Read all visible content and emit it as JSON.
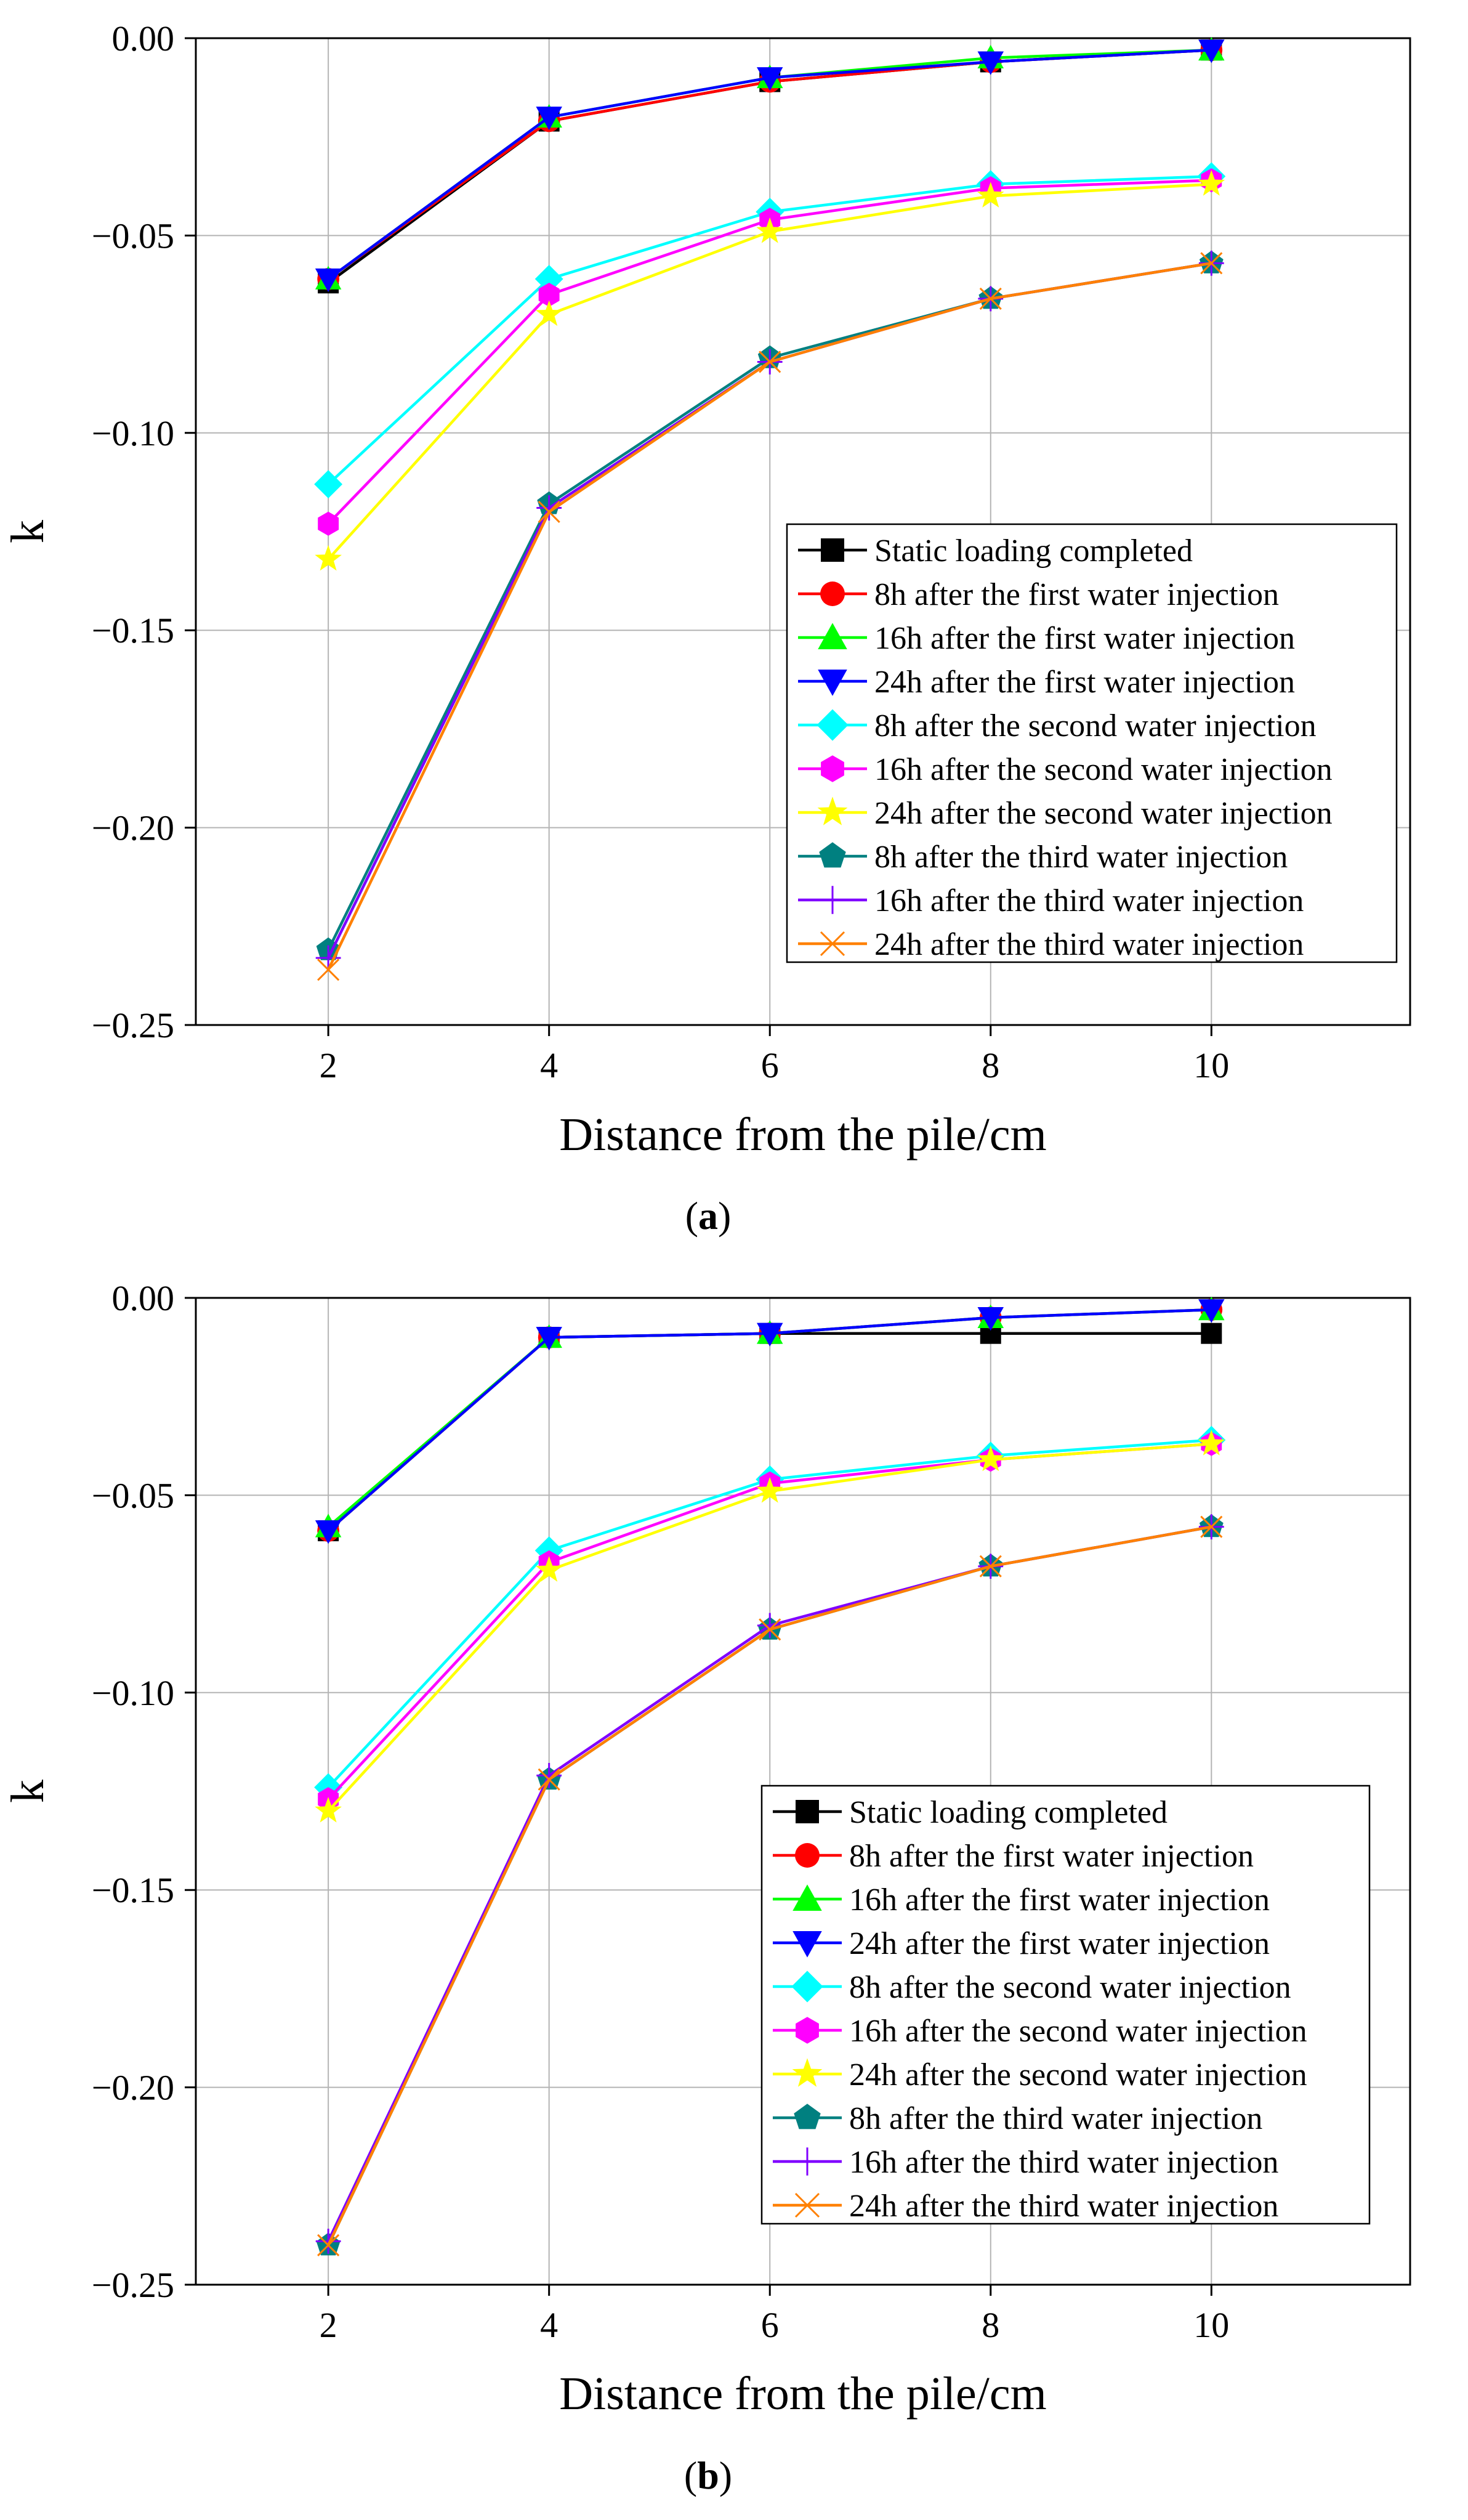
{
  "chart_data": [
    {
      "panel_label": "a",
      "type": "line",
      "xlabel": "Distance from the pile/cm",
      "ylabel": "k",
      "x": [
        2,
        4,
        6,
        8,
        10
      ],
      "xlim": [
        0.8,
        11.8
      ],
      "ylim": [
        -0.25,
        0.0
      ],
      "xticks": [
        "2",
        "4",
        "6",
        "8",
        "10"
      ],
      "yticks": [
        "0.00",
        "−0.05",
        "−0.10",
        "−0.15",
        "−0.20",
        "−0.25"
      ],
      "grid": true,
      "legend_position": "lower-right",
      "series": [
        {
          "name": "Static loading completed",
          "color": "#000000",
          "marker": "square",
          "values": [
            -0.062,
            -0.021,
            -0.011,
            -0.006,
            -0.003
          ]
        },
        {
          "name": "8h after the first water injection",
          "color": "#ff0000",
          "marker": "circle",
          "values": [
            -0.061,
            -0.021,
            -0.011,
            -0.006,
            -0.003
          ]
        },
        {
          "name": "16h after the first water injection",
          "color": "#00ff00",
          "marker": "triangle-up",
          "values": [
            -0.061,
            -0.02,
            -0.01,
            -0.005,
            -0.003
          ]
        },
        {
          "name": "24h after the first water injection",
          "color": "#0000ff",
          "marker": "triangle-down",
          "values": [
            -0.061,
            -0.02,
            -0.01,
            -0.006,
            -0.003
          ]
        },
        {
          "name": "8h after the second water injection",
          "color": "#00ffff",
          "marker": "diamond",
          "values": [
            -0.113,
            -0.061,
            -0.044,
            -0.037,
            -0.035
          ]
        },
        {
          "name": "16h after the second water injection",
          "color": "#ff00ff",
          "marker": "hexagon",
          "values": [
            -0.123,
            -0.065,
            -0.046,
            -0.038,
            -0.036
          ]
        },
        {
          "name": "24h after the second water injection",
          "color": "#ffff00",
          "marker": "star",
          "values": [
            -0.132,
            -0.07,
            -0.049,
            -0.04,
            -0.037
          ]
        },
        {
          "name": "8h after the third water injection",
          "color": "#008080",
          "marker": "pentagon",
          "values": [
            -0.231,
            -0.118,
            -0.081,
            -0.066,
            -0.057
          ]
        },
        {
          "name": "16h after the third water injection",
          "color": "#8000ff",
          "marker": "plus",
          "values": [
            -0.233,
            -0.119,
            -0.082,
            -0.066,
            -0.057
          ]
        },
        {
          "name": "24h after the third water injection",
          "color": "#ff8000",
          "marker": "x",
          "values": [
            -0.236,
            -0.12,
            -0.082,
            -0.066,
            -0.057
          ]
        }
      ]
    },
    {
      "panel_label": "b",
      "type": "line",
      "xlabel": "Distance from the pile/cm",
      "ylabel": "k",
      "x": [
        2,
        4,
        6,
        8,
        10
      ],
      "xlim": [
        0.8,
        11.8
      ],
      "ylim": [
        -0.25,
        0.0
      ],
      "xticks": [
        "2",
        "4",
        "6",
        "8",
        "10"
      ],
      "yticks": [
        "0.00",
        "−0.05",
        "−0.10",
        "−0.15",
        "−0.20",
        "−0.25"
      ],
      "grid": true,
      "legend_position": "lower-right",
      "series": [
        {
          "name": "Static loading completed",
          "color": "#000000",
          "marker": "square",
          "values": [
            -0.059,
            -0.01,
            -0.009,
            -0.009,
            -0.009
          ]
        },
        {
          "name": "8h after the first water injection",
          "color": "#ff0000",
          "marker": "circle",
          "values": [
            -0.059,
            -0.01,
            -0.009,
            -0.005,
            -0.003
          ]
        },
        {
          "name": "16h after the first water injection",
          "color": "#00ff00",
          "marker": "triangle-up",
          "values": [
            -0.058,
            -0.01,
            -0.009,
            -0.005,
            -0.003
          ]
        },
        {
          "name": "24h after the first water injection",
          "color": "#0000ff",
          "marker": "triangle-down",
          "values": [
            -0.059,
            -0.01,
            -0.009,
            -0.005,
            -0.003
          ]
        },
        {
          "name": "8h after the second water injection",
          "color": "#00ffff",
          "marker": "diamond",
          "values": [
            -0.124,
            -0.064,
            -0.046,
            -0.04,
            -0.036
          ]
        },
        {
          "name": "16h after the second water injection",
          "color": "#ff00ff",
          "marker": "hexagon",
          "values": [
            -0.127,
            -0.067,
            -0.047,
            -0.041,
            -0.037
          ]
        },
        {
          "name": "24h after the second water injection",
          "color": "#ffff00",
          "marker": "star",
          "values": [
            -0.13,
            -0.069,
            -0.049,
            -0.041,
            -0.037
          ]
        },
        {
          "name": "8h after the third water injection",
          "color": "#008080",
          "marker": "pentagon",
          "values": [
            -0.24,
            -0.122,
            -0.084,
            -0.068,
            -0.058
          ]
        },
        {
          "name": "16h after the third water injection",
          "color": "#8000ff",
          "marker": "plus",
          "values": [
            -0.239,
            -0.121,
            -0.083,
            -0.068,
            -0.058
          ]
        },
        {
          "name": "24h after the third water injection",
          "color": "#ff8000",
          "marker": "x",
          "values": [
            -0.24,
            -0.122,
            -0.084,
            -0.068,
            -0.058
          ]
        }
      ]
    }
  ]
}
